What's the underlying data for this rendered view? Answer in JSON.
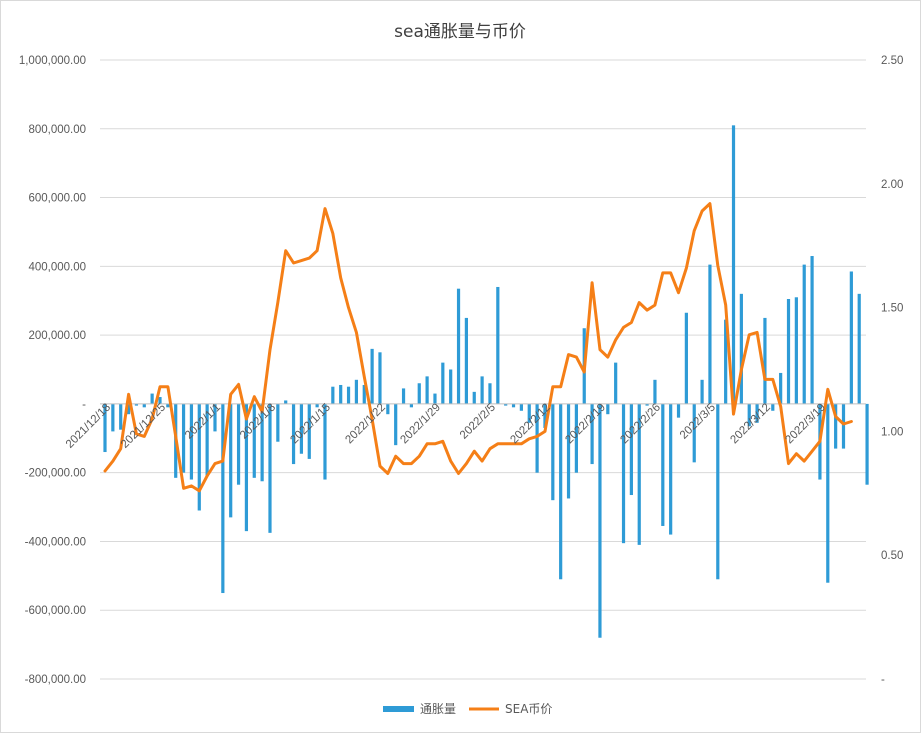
{
  "chart_data": {
    "type": "bar+line",
    "title": "sea通胀量与币价",
    "legend": {
      "position": "bottom",
      "entries": [
        "通胀量",
        "SEA币价"
      ]
    },
    "colors": {
      "bar": "#2E9BD6",
      "line": "#F57F17",
      "grid": "#d9d9d9"
    },
    "grid": true,
    "y_left": {
      "range": [
        -800000,
        1000000
      ],
      "ticks": [
        "1,000,000.00",
        "800,000.00",
        "600,000.00",
        "400,000.00",
        "200,000.00",
        "-",
        "-200,000.00",
        "-400,000.00",
        "-600,000.00",
        "-800,000.00"
      ],
      "tick_values": [
        1000000,
        800000,
        600000,
        400000,
        200000,
        0,
        -200000,
        -400000,
        -600000,
        -800000
      ]
    },
    "y_right": {
      "range": [
        0,
        2.5
      ],
      "ticks": [
        "2.50",
        "2.00",
        "1.50",
        "1.00",
        "0.50",
        "-"
      ],
      "tick_values": [
        2.5,
        2.0,
        1.5,
        1.0,
        0.5,
        0
      ]
    },
    "x_tick_labels": [
      {
        "label": "2021/12/18",
        "index": 0
      },
      {
        "label": "2021/12/25",
        "index": 7
      },
      {
        "label": "2022/1/1",
        "index": 14
      },
      {
        "label": "2022/1/8",
        "index": 21
      },
      {
        "label": "2022/1/15",
        "index": 28
      },
      {
        "label": "2022/1/22",
        "index": 35
      },
      {
        "label": "2022/1/29",
        "index": 42
      },
      {
        "label": "2022/2/5",
        "index": 49
      },
      {
        "label": "2022/2/12",
        "index": 56
      },
      {
        "label": "2022/2/19",
        "index": 63
      },
      {
        "label": "2022/2/26",
        "index": 70
      },
      {
        "label": "2022/3/5",
        "index": 77
      },
      {
        "label": "2022/3/12",
        "index": 84
      },
      {
        "label": "2022/3/19",
        "index": 91
      }
    ],
    "series": [
      {
        "name": "通胀量",
        "type": "bar",
        "axis": "left",
        "values": [
          -140000,
          -80000,
          -75000,
          -30000,
          -5000,
          -10000,
          30000,
          20000,
          -10000,
          -215000,
          -200000,
          -220000,
          -310000,
          -210000,
          -80000,
          -550000,
          -330000,
          -235000,
          -370000,
          -215000,
          -225000,
          -375000,
          -110000,
          10000,
          -175000,
          -145000,
          -160000,
          -10000,
          -220000,
          50000,
          55000,
          50000,
          70000,
          55000,
          160000,
          150000,
          -30000,
          -120000,
          45000,
          -10000,
          60000,
          80000,
          30000,
          120000,
          100000,
          335000,
          250000,
          35000,
          80000,
          60000,
          340000,
          -5000,
          -10000,
          -20000,
          -55000,
          -200000,
          -70000,
          -280000,
          -510000,
          -275000,
          -200000,
          220000,
          -175000,
          -680000,
          -30000,
          120000,
          -405000,
          -265000,
          -410000,
          -5000,
          70000,
          -355000,
          -380000,
          -40000,
          265000,
          -170000,
          70000,
          405000,
          -510000,
          245000,
          810000,
          320000,
          -65000,
          -55000,
          250000,
          -20000,
          90000,
          305000,
          310000,
          405000,
          430000,
          -220000,
          -520000,
          -130000,
          -130000,
          385000,
          320000,
          -235000
        ],
        "missing_note": ""
      },
      {
        "name": "SEA币价",
        "type": "line",
        "axis": "right",
        "values": [
          0.84,
          0.88,
          0.93,
          1.15,
          0.99,
          0.98,
          1.05,
          1.18,
          1.18,
          0.98,
          0.77,
          0.78,
          0.76,
          0.82,
          0.87,
          0.88,
          1.15,
          1.19,
          1.05,
          1.14,
          1.08,
          1.33,
          1.52,
          1.73,
          1.68,
          1.69,
          1.7,
          1.73,
          1.9,
          1.8,
          1.62,
          1.5,
          1.4,
          1.22,
          1.05,
          0.86,
          0.83,
          0.9,
          0.87,
          0.87,
          0.9,
          0.95,
          0.95,
          0.96,
          0.88,
          0.83,
          0.87,
          0.92,
          0.88,
          0.93,
          0.95,
          0.95,
          0.95,
          0.95,
          0.97,
          0.98,
          1.0,
          1.18,
          1.18,
          1.31,
          1.3,
          1.24,
          1.6,
          1.33,
          1.3,
          1.37,
          1.42,
          1.44,
          1.52,
          1.49,
          1.51,
          1.64,
          1.64,
          1.56,
          1.66,
          1.81,
          1.89,
          1.92,
          1.67,
          1.51,
          1.07,
          1.25,
          1.39,
          1.4,
          1.21,
          1.21,
          1.1,
          0.87,
          0.91,
          0.88,
          0.92,
          0.96,
          1.17,
          1.06,
          1.03,
          1.04
        ]
      }
    ]
  }
}
